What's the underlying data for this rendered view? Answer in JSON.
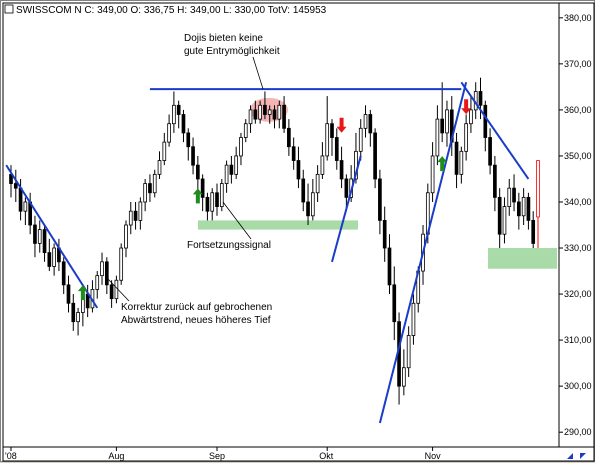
{
  "header": {
    "title": "SWISSCOM N C: 349,00 O: 336,75 H: 349,00 L: 330,00 TotV: 145953",
    "corner_icon": "checkbox-icon"
  },
  "footer": {
    "scroll_icon": "scroll-arrows-icon"
  },
  "annotations": {
    "doji_line1": "Dojis bieten keine",
    "doji_line2": "gute Entrymöglichkeit",
    "continuation": "Fortsetzungssignal",
    "correction_line1": "Korrektur zurück auf gebrochenen",
    "correction_line2": "Abwärtstrend, neues höheres Tief"
  },
  "chart_data": {
    "type": "candlestick",
    "title": "SWISSCOM N",
    "last_bar": {
      "C": 349.0,
      "O": 336.75,
      "H": 349.0,
      "L": 330.0,
      "TotV": 145953
    },
    "y_axis": {
      "range": [
        287,
        383
      ],
      "ticks": [
        "380,00",
        "370,00",
        "360,00",
        "350,00",
        "340,00",
        "330,00",
        "320,00",
        "310,00",
        "300,00",
        "290,00"
      ],
      "side": "right"
    },
    "x_axis": {
      "labels": [
        "'08",
        "Aug",
        "Sep",
        "Okt",
        "Nov"
      ]
    },
    "candles": [
      [
        346,
        344,
        348,
        341
      ],
      [
        344,
        343,
        347,
        340
      ],
      [
        343,
        338,
        345,
        336
      ],
      [
        338,
        340,
        341,
        335
      ],
      [
        340,
        335,
        342,
        333
      ],
      [
        335,
        331,
        337,
        328
      ],
      [
        331,
        334,
        336,
        329
      ],
      [
        334,
        329,
        335,
        327
      ],
      [
        329,
        326,
        332,
        325
      ],
      [
        326,
        330,
        331,
        324
      ],
      [
        330,
        327,
        332,
        325
      ],
      [
        327,
        322,
        328,
        320
      ],
      [
        322,
        318,
        324,
        316
      ],
      [
        318,
        314,
        320,
        312
      ],
      [
        314,
        316,
        317,
        311
      ],
      [
        316,
        320,
        321,
        313
      ],
      [
        320,
        317,
        322,
        315
      ],
      [
        317,
        321,
        323,
        316
      ],
      [
        321,
        324,
        325,
        319
      ],
      [
        324,
        327,
        329,
        322
      ],
      [
        327,
        322,
        328,
        320
      ],
      [
        322,
        319,
        323,
        317
      ],
      [
        319,
        323,
        324,
        318
      ],
      [
        323,
        330,
        331,
        322
      ],
      [
        330,
        335,
        336,
        328
      ],
      [
        335,
        338,
        340,
        333
      ],
      [
        338,
        336,
        340,
        334
      ],
      [
        336,
        340,
        341,
        334
      ],
      [
        340,
        344,
        345,
        338
      ],
      [
        344,
        342,
        346,
        340
      ],
      [
        342,
        346,
        347,
        341
      ],
      [
        346,
        349,
        351,
        345
      ],
      [
        349,
        353,
        355,
        348
      ],
      [
        353,
        357,
        359,
        352
      ],
      [
        357,
        361,
        364,
        355
      ],
      [
        361,
        359,
        362,
        356
      ],
      [
        359,
        355,
        360,
        353
      ],
      [
        355,
        352,
        356,
        349
      ],
      [
        352,
        348,
        354,
        346
      ],
      [
        348,
        345,
        350,
        342
      ],
      [
        345,
        341,
        346,
        338
      ],
      [
        341,
        338,
        342,
        336
      ],
      [
        338,
        342,
        343,
        336
      ],
      [
        342,
        339,
        344,
        337
      ],
      [
        339,
        344,
        345,
        338
      ],
      [
        344,
        348,
        349,
        342
      ],
      [
        348,
        346,
        350,
        344
      ],
      [
        346,
        350,
        352,
        345
      ],
      [
        350,
        354,
        355,
        348
      ],
      [
        354,
        357,
        358,
        353
      ],
      [
        357,
        360,
        361,
        355
      ],
      [
        360,
        358,
        362,
        357
      ],
      [
        358,
        361,
        362,
        357
      ],
      [
        361,
        359,
        364,
        358
      ],
      [
        359,
        360,
        361,
        357
      ],
      [
        360,
        358,
        361,
        356
      ],
      [
        358,
        361,
        362,
        356
      ],
      [
        361,
        356,
        363,
        355
      ],
      [
        356,
        352,
        358,
        350
      ],
      [
        352,
        349,
        354,
        347
      ],
      [
        349,
        345,
        352,
        343
      ],
      [
        345,
        340,
        347,
        338
      ],
      [
        340,
        337,
        344,
        335
      ],
      [
        337,
        342,
        345,
        336
      ],
      [
        342,
        346,
        348,
        340
      ],
      [
        346,
        350,
        353,
        345
      ],
      [
        350,
        357,
        363,
        349
      ],
      [
        357,
        354,
        358,
        350
      ],
      [
        354,
        349,
        356,
        347
      ],
      [
        349,
        345,
        352,
        343
      ],
      [
        345,
        341,
        346,
        338
      ],
      [
        341,
        345,
        348,
        340
      ],
      [
        345,
        351,
        355,
        344
      ],
      [
        351,
        356,
        358,
        349
      ],
      [
        356,
        359,
        361,
        354
      ],
      [
        359,
        355,
        360,
        352
      ],
      [
        355,
        345,
        356,
        343
      ],
      [
        345,
        336,
        347,
        333
      ],
      [
        336,
        330,
        339,
        327
      ],
      [
        330,
        322,
        333,
        320
      ],
      [
        322,
        314,
        326,
        310
      ],
      [
        314,
        300,
        316,
        296
      ],
      [
        300,
        304,
        308,
        298
      ],
      [
        304,
        311,
        313,
        302
      ],
      [
        311,
        318,
        320,
        309
      ],
      [
        318,
        325,
        326,
        316
      ],
      [
        325,
        333,
        335,
        322
      ],
      [
        333,
        342,
        344,
        331
      ],
      [
        342,
        350,
        353,
        340
      ],
      [
        350,
        358,
        361,
        348
      ],
      [
        358,
        355,
        366,
        353
      ],
      [
        355,
        360,
        362,
        352
      ],
      [
        360,
        353,
        363,
        350
      ],
      [
        353,
        346,
        355,
        343
      ],
      [
        346,
        351,
        352,
        344
      ],
      [
        351,
        357,
        359,
        349
      ],
      [
        357,
        360,
        363,
        355
      ],
      [
        360,
        364,
        366,
        358
      ],
      [
        364,
        361,
        367,
        358
      ],
      [
        361,
        354,
        362,
        351
      ],
      [
        354,
        348,
        356,
        346
      ],
      [
        348,
        341,
        350,
        338
      ],
      [
        341,
        333,
        343,
        330
      ],
      [
        333,
        339,
        341,
        331
      ],
      [
        339,
        343,
        345,
        337
      ],
      [
        343,
        340,
        346,
        338
      ],
      [
        340,
        337,
        342,
        334
      ],
      [
        337,
        341,
        343,
        335
      ],
      [
        341,
        336,
        342,
        334
      ],
      [
        336,
        331,
        338,
        330
      ],
      [
        336.75,
        349,
        349,
        330
      ]
    ],
    "colors": {
      "up": "#ffffff",
      "down": "#000000",
      "outline": "#000000",
      "last_up": "#ff0000",
      "trendline": "#1a3cc8",
      "zone": "#a8dba8",
      "doji_highlight": "#f5b5b5",
      "arrow_up": "#1e8c1e",
      "arrow_down": "#e81818"
    }
  }
}
